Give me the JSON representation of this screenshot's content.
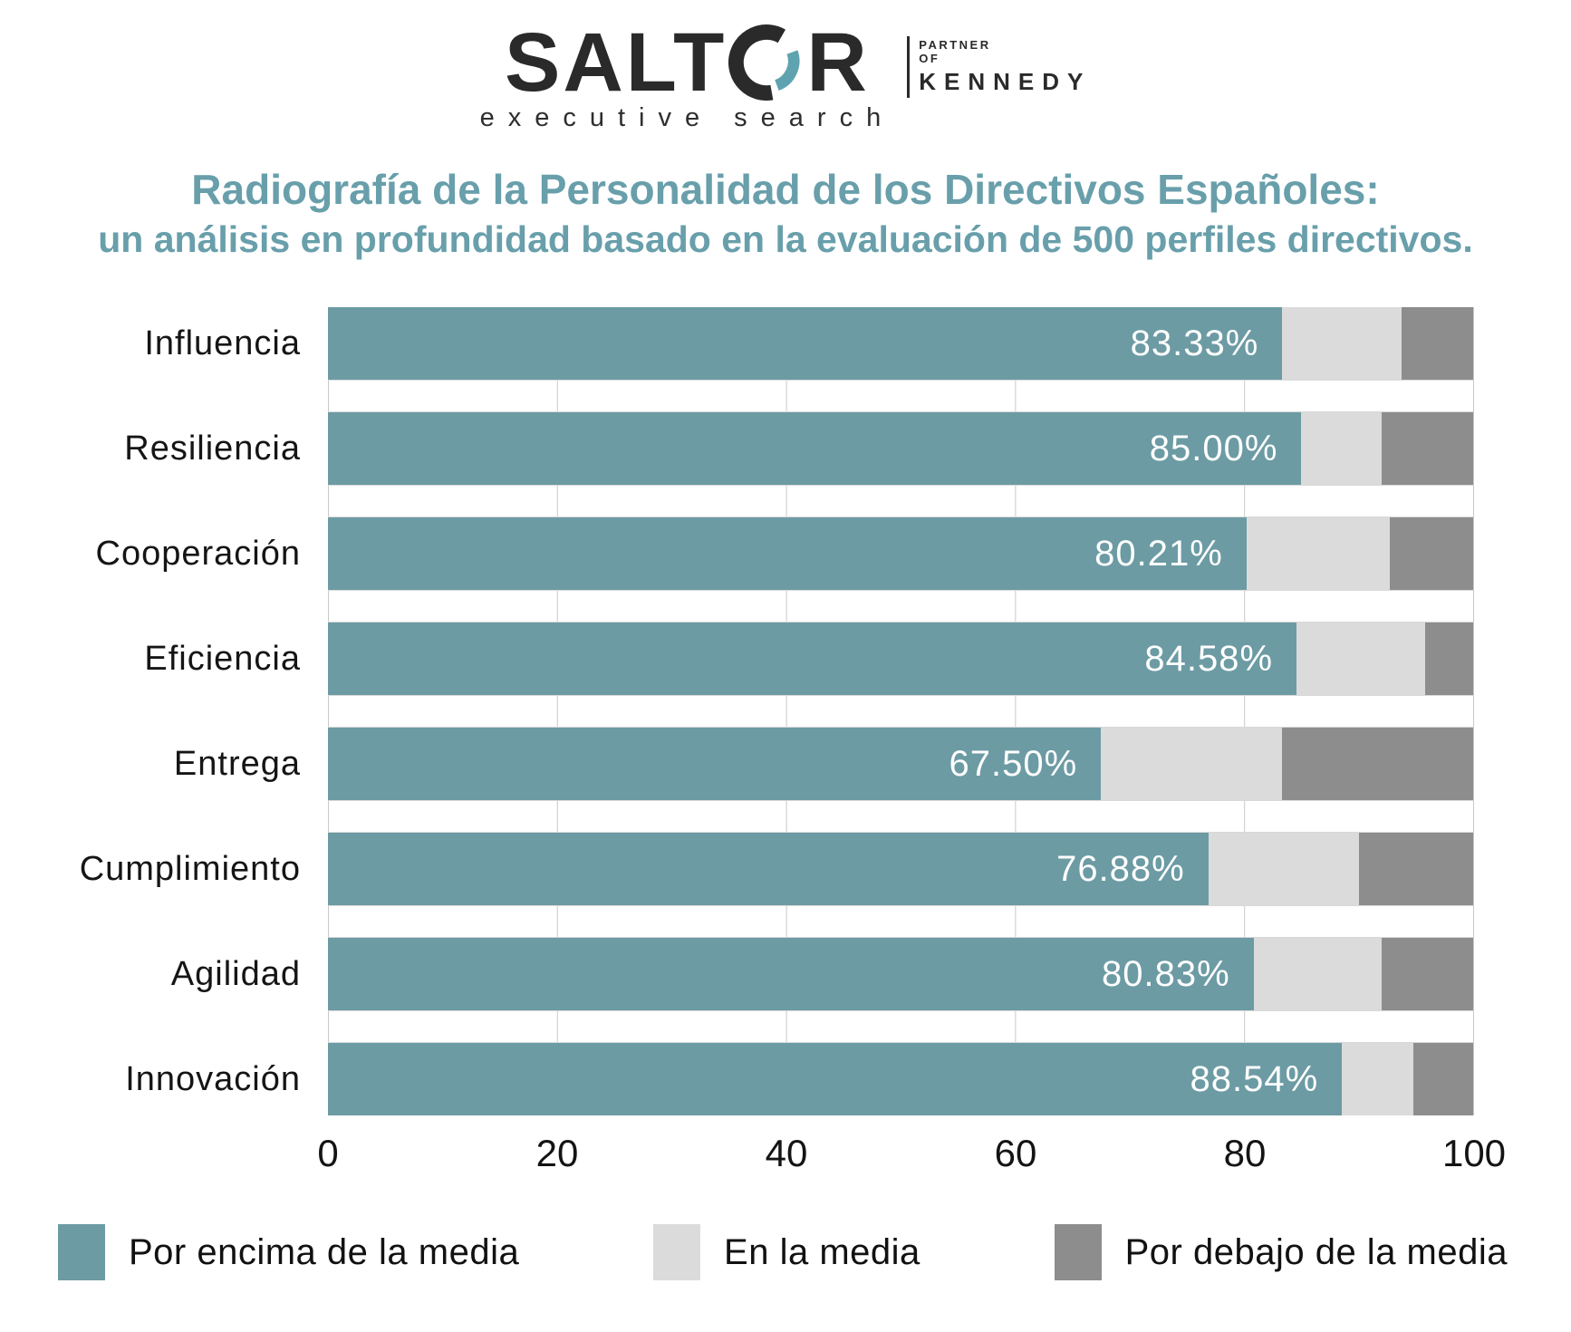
{
  "logo": {
    "brand_prefix": "SALT",
    "brand_suffix": "R",
    "o_icon_dark": "#2b2a2a",
    "o_icon_teal": "#5fa3b0",
    "tagline": "executive search",
    "partner_line1": "PARTNER",
    "partner_line2": "OF",
    "partner_name": "KENNEDY"
  },
  "title": {
    "line1": "Radiografía de la Personalidad de los Directivos Españoles:",
    "line2": "un análisis en profundidad basado en la evaluación de 500 perfiles directivos."
  },
  "chart_data": {
    "type": "bar",
    "orientation": "horizontal",
    "stacked": true,
    "title": "Radiografía de la Personalidad de los Directivos Españoles",
    "categories": [
      "Influencia",
      "Resiliencia",
      "Cooperación",
      "Eficiencia",
      "Entrega",
      "Cumplimiento",
      "Agilidad",
      "Innovación"
    ],
    "series": [
      {
        "name": "Por encima de la media",
        "color": "#6C9BA4",
        "values": [
          83.33,
          85.0,
          80.21,
          84.58,
          67.5,
          76.88,
          80.83,
          88.54
        ],
        "data_labels": [
          "83.33%",
          "85.00%",
          "80.21%",
          "84.58%",
          "67.50%",
          "76.88%",
          "80.83%",
          "88.54%"
        ]
      },
      {
        "name": "En la media",
        "color": "#DBDBDB",
        "values": [
          10.42,
          7.0,
          12.5,
          11.25,
          15.83,
          13.12,
          11.17,
          6.25
        ],
        "data_labels": [
          "",
          "",
          "",
          "",
          "",
          "",
          "",
          ""
        ]
      },
      {
        "name": "Por debajo de la media",
        "color": "#8D8D8D",
        "values": [
          6.25,
          8.0,
          7.29,
          4.17,
          16.67,
          10.0,
          8.0,
          5.21
        ],
        "data_labels": [
          "",
          "",
          "",
          "",
          "",
          "",
          "",
          ""
        ]
      }
    ],
    "xlim": [
      0,
      100
    ],
    "x_ticks": [
      "0",
      "20",
      "40",
      "60",
      "80",
      "100"
    ],
    "grid": true,
    "gridline_color": "#c9c9c9",
    "legend_position": "bottom"
  },
  "legend": {
    "items": [
      {
        "label": "Por encima de la media",
        "color": "#6C9BA4"
      },
      {
        "label": "En la media",
        "color": "#DBDBDB"
      },
      {
        "label": "Por debajo de la media",
        "color": "#8D8D8D"
      }
    ]
  }
}
